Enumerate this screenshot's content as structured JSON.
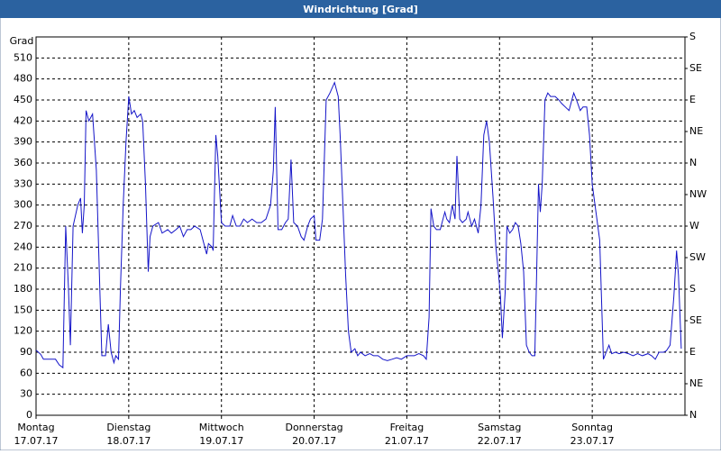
{
  "chart_data": {
    "type": "line",
    "title": "Windrichtung [Grad]",
    "y_label": "Grad",
    "xlim": [
      0,
      7
    ],
    "xticks": [
      {
        "value": 0,
        "label": "Montag",
        "date": "17.07.17"
      },
      {
        "value": 1,
        "label": "Dienstag",
        "date": "18.07.17"
      },
      {
        "value": 2,
        "label": "Mittwoch",
        "date": "19.07.17"
      },
      {
        "value": 3,
        "label": "Donnerstag",
        "date": "20.07.17"
      },
      {
        "value": 4,
        "label": "Freitag",
        "date": "21.07.17"
      },
      {
        "value": 5,
        "label": "Samstag",
        "date": "22.07.17"
      },
      {
        "value": 6,
        "label": "Sonntag",
        "date": "23.07.17"
      }
    ],
    "ylim": [
      0,
      540
    ],
    "yticks": [
      0,
      30,
      60,
      90,
      120,
      150,
      180,
      210,
      240,
      270,
      300,
      330,
      360,
      390,
      420,
      450,
      480,
      510
    ],
    "y2lim": [
      0,
      540
    ],
    "y2ticks": [
      {
        "value": 0,
        "label": "N"
      },
      {
        "value": 45,
        "label": "NE"
      },
      {
        "value": 90,
        "label": "E"
      },
      {
        "value": 135,
        "label": "SE"
      },
      {
        "value": 180,
        "label": "S"
      },
      {
        "value": 225,
        "label": "SW"
      },
      {
        "value": 270,
        "label": "W"
      },
      {
        "value": 315,
        "label": "NW"
      },
      {
        "value": 360,
        "label": "N"
      },
      {
        "value": 405,
        "label": "NE"
      },
      {
        "value": 450,
        "label": "E"
      },
      {
        "value": 495,
        "label": "SE"
      },
      {
        "value": 540,
        "label": "S"
      }
    ],
    "grid": true,
    "series": [
      {
        "color": "#1414c8",
        "x": [
          0.0,
          0.05,
          0.08,
          0.15,
          0.21,
          0.25,
          0.29,
          0.32,
          0.35,
          0.37,
          0.4,
          0.45,
          0.48,
          0.5,
          0.52,
          0.54,
          0.57,
          0.61,
          0.65,
          0.69,
          0.71,
          0.75,
          0.78,
          0.81,
          0.84,
          0.86,
          0.89,
          0.91,
          0.94,
          0.97,
          1.0,
          1.03,
          1.06,
          1.09,
          1.13,
          1.15,
          1.18,
          1.21,
          1.23,
          1.26,
          1.32,
          1.36,
          1.42,
          1.46,
          1.51,
          1.55,
          1.59,
          1.63,
          1.67,
          1.71,
          1.77,
          1.81,
          1.84,
          1.86,
          1.9,
          1.91,
          1.94,
          1.96,
          2.0,
          2.04,
          2.09,
          2.12,
          2.16,
          2.2,
          2.24,
          2.28,
          2.33,
          2.38,
          2.43,
          2.48,
          2.53,
          2.56,
          2.58,
          2.61,
          2.65,
          2.69,
          2.72,
          2.75,
          2.78,
          2.82,
          2.86,
          2.89,
          2.93,
          2.96,
          3.0,
          3.02,
          3.06,
          3.09,
          3.13,
          3.17,
          3.22,
          3.26,
          3.28,
          3.31,
          3.34,
          3.37,
          3.4,
          3.44,
          3.47,
          3.5,
          3.55,
          3.6,
          3.64,
          3.69,
          3.74,
          3.79,
          3.84,
          3.89,
          3.94,
          4.0,
          4.03,
          4.08,
          4.13,
          4.18,
          4.21,
          4.24,
          4.26,
          4.29,
          4.32,
          4.36,
          4.39,
          4.41,
          4.43,
          4.46,
          4.49,
          4.52,
          4.54,
          4.57,
          4.6,
          4.64,
          4.66,
          4.7,
          4.73,
          4.77,
          4.8,
          4.83,
          4.86,
          4.89,
          4.93,
          4.96,
          4.99,
          5.01,
          5.03,
          5.06,
          5.08,
          5.11,
          5.14,
          5.17,
          5.2,
          5.23,
          5.26,
          5.29,
          5.32,
          5.35,
          5.38,
          5.4,
          5.42,
          5.44,
          5.46,
          5.49,
          5.52,
          5.55,
          5.6,
          5.64,
          5.67,
          5.71,
          5.75,
          5.78,
          5.8,
          5.83,
          5.87,
          5.9,
          5.94,
          5.97,
          6.0,
          6.05,
          6.08,
          6.12,
          6.15,
          6.18,
          6.21,
          6.25,
          6.29,
          6.34,
          6.39,
          6.44,
          6.49,
          6.54,
          6.6,
          6.64,
          6.68,
          6.72,
          6.77,
          6.8,
          6.84,
          6.88,
          6.91,
          6.93,
          6.96
        ],
        "values": [
          93,
          87,
          80,
          80,
          80,
          72,
          68,
          270,
          180,
          100,
          270,
          300,
          310,
          260,
          300,
          435,
          420,
          430,
          350,
          170,
          85,
          85,
          130,
          90,
          75,
          85,
          80,
          180,
          300,
          390,
          455,
          430,
          435,
          425,
          430,
          420,
          330,
          205,
          255,
          270,
          275,
          260,
          265,
          260,
          265,
          270,
          255,
          265,
          265,
          270,
          265,
          245,
          230,
          245,
          240,
          235,
          400,
          370,
          275,
          270,
          270,
          285,
          270,
          270,
          280,
          275,
          280,
          275,
          275,
          280,
          300,
          350,
          440,
          265,
          265,
          275,
          280,
          365,
          275,
          270,
          255,
          250,
          270,
          280,
          285,
          250,
          250,
          280,
          450,
          460,
          475,
          455,
          400,
          300,
          200,
          120,
          90,
          95,
          85,
          90,
          85,
          88,
          85,
          85,
          80,
          78,
          80,
          82,
          80,
          85,
          85,
          85,
          88,
          85,
          80,
          140,
          295,
          270,
          265,
          265,
          280,
          290,
          280,
          275,
          300,
          280,
          370,
          280,
          275,
          280,
          290,
          270,
          280,
          260,
          300,
          400,
          420,
          390,
          310,
          240,
          200,
          170,
          110,
          175,
          270,
          260,
          265,
          275,
          270,
          245,
          205,
          100,
          90,
          85,
          85,
          200,
          330,
          290,
          330,
          450,
          460,
          455,
          455,
          450,
          445,
          440,
          435,
          450,
          460,
          450,
          435,
          440,
          440,
          400,
          330,
          280,
          250,
          80,
          90,
          100,
          88,
          90,
          88,
          90,
          88,
          85,
          88,
          85,
          88,
          85,
          80,
          90,
          90,
          92,
          100,
          170,
          235,
          200,
          95
        ]
      }
    ]
  }
}
